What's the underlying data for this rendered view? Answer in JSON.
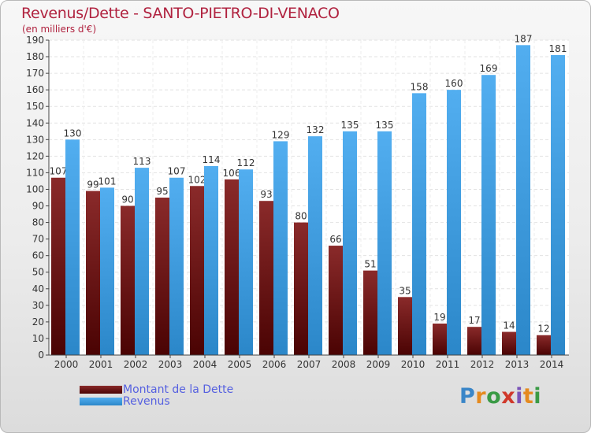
{
  "title": "Revenus/Dette - SANTO-PIETRO-DI-VENACO",
  "subtitle": "(en milliers d'€)",
  "logo_text": "Proxiti",
  "chart_data": {
    "type": "bar",
    "categories": [
      "2000",
      "2001",
      "2002",
      "2003",
      "2004",
      "2005",
      "2006",
      "2007",
      "2008",
      "2009",
      "2010",
      "2011",
      "2012",
      "2013",
      "2014"
    ],
    "series": [
      {
        "name": "Montant de la Dette",
        "color": "#7a1111",
        "values": [
          107,
          99,
          90,
          95,
          102,
          106,
          93,
          80,
          66,
          51,
          35,
          19,
          17,
          14,
          12
        ]
      },
      {
        "name": "Revenus",
        "color": "#3fa0e6",
        "values": [
          130,
          101,
          113,
          107,
          114,
          112,
          129,
          132,
          135,
          135,
          158,
          160,
          169,
          187,
          181
        ]
      }
    ],
    "ylim": [
      0,
      190
    ],
    "yticks": [
      0,
      10,
      20,
      30,
      40,
      50,
      60,
      70,
      80,
      90,
      100,
      110,
      120,
      130,
      140,
      150,
      160,
      170,
      180,
      190
    ],
    "grid": true,
    "legend_position": "bottom-left"
  }
}
